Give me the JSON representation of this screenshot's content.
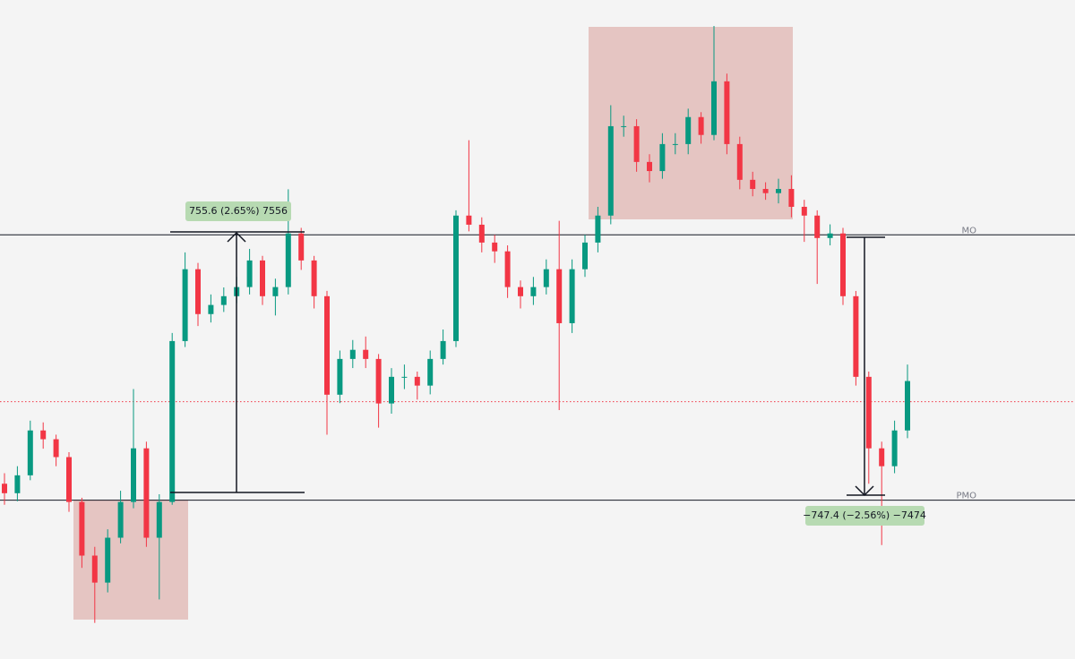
{
  "chart_data": {
    "type": "candlestick",
    "up_color": "#089981",
    "down_color": "#f23645",
    "ylim": [
      28060,
      29940
    ],
    "open": [
      28560,
      28533,
      28584,
      28712,
      28687,
      28636,
      28508,
      28355,
      28278,
      28406,
      28508,
      28661,
      28406,
      28508,
      28967,
      29172,
      29044,
      29070,
      29095,
      29121,
      29197,
      29095,
      29121,
      29274,
      29197,
      29095,
      28814,
      28916,
      28942,
      28916,
      28789,
      28865,
      28865,
      28840,
      28916,
      28967,
      29325,
      29299,
      29248,
      29223,
      29121,
      29095,
      29121,
      29172,
      29018,
      29172,
      29248,
      29325,
      29580,
      29580,
      29478,
      29452,
      29529,
      29529,
      29606,
      29555,
      29708,
      29529,
      29427,
      29401,
      29389,
      29401,
      29350,
      29325,
      29261,
      29274,
      29095,
      28865,
      28661,
      28610,
      28712
    ],
    "high": [
      28590,
      28610,
      28740,
      28735,
      28700,
      28650,
      28520,
      28380,
      28430,
      28540,
      28830,
      28680,
      28530,
      28990,
      29220,
      29190,
      29100,
      29120,
      29150,
      29230,
      29210,
      29145,
      29400,
      29290,
      29210,
      29110,
      28940,
      28970,
      28980,
      28930,
      28890,
      28900,
      28880,
      28940,
      29000,
      29340,
      29540,
      29320,
      29270,
      29240,
      29140,
      29150,
      29200,
      29310,
      29200,
      29270,
      29350,
      29640,
      29610,
      29600,
      29500,
      29560,
      29560,
      29630,
      29620,
      29866,
      29730,
      29550,
      29450,
      29420,
      29430,
      29440,
      29370,
      29340,
      29300,
      29290,
      29110,
      28880,
      28680,
      28740,
      28900
    ],
    "low": [
      28500,
      28510,
      28570,
      28660,
      28610,
      28480,
      28320,
      28163,
      28250,
      28390,
      28490,
      28380,
      28230,
      28500,
      28950,
      29010,
      29020,
      29050,
      29075,
      29100,
      29070,
      29040,
      29100,
      29170,
      29060,
      28700,
      28790,
      28890,
      28890,
      28720,
      28760,
      28830,
      28800,
      28815,
      28900,
      28950,
      29280,
      29220,
      29190,
      29090,
      29060,
      29070,
      29100,
      28770,
      28990,
      29150,
      29220,
      29300,
      29550,
      29450,
      29420,
      29430,
      29500,
      29500,
      29530,
      29540,
      29500,
      29400,
      29380,
      29370,
      29360,
      29320,
      29250,
      29130,
      29240,
      29070,
      28840,
      28560,
      28385,
      28590,
      28690
    ],
    "close": [
      28533,
      28584,
      28712,
      28687,
      28636,
      28508,
      28355,
      28278,
      28406,
      28508,
      28661,
      28406,
      28508,
      28967,
      29172,
      29044,
      29070,
      29095,
      29121,
      29197,
      29095,
      29121,
      29274,
      29197,
      29095,
      28814,
      28916,
      28942,
      28916,
      28789,
      28865,
      28865,
      28840,
      28916,
      28967,
      29325,
      29299,
      29248,
      29223,
      29121,
      29095,
      29121,
      29172,
      29018,
      29172,
      29248,
      29325,
      29580,
      29580,
      29478,
      29452,
      29529,
      29529,
      29606,
      29555,
      29708,
      29529,
      29427,
      29401,
      29389,
      29401,
      29350,
      29325,
      29261,
      29274,
      29095,
      28865,
      28661,
      28610,
      28712,
      28853
    ],
    "levels": [
      {
        "label": "MO",
        "value": 29270
      },
      {
        "label": "PMO",
        "value": 28513
      }
    ],
    "price_line": 28794,
    "annotations": [
      "755.6 (2.65%) 7556",
      "−747.4 (−2.56%) −7474"
    ]
  }
}
